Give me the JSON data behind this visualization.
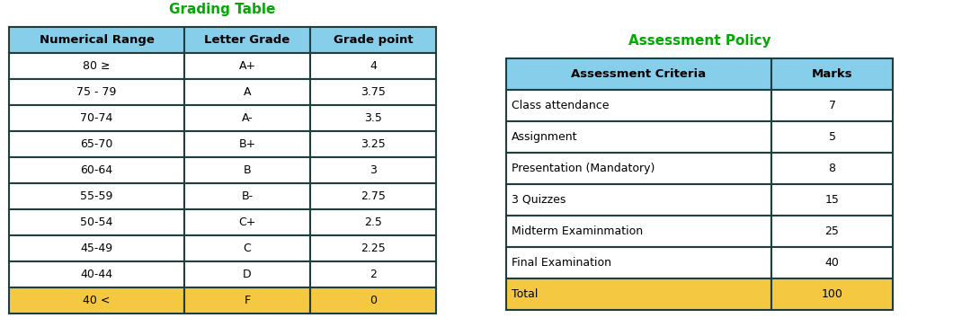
{
  "grading_title": "Grading Table",
  "assessment_title": "Assessment Policy",
  "title_color": "#00AA00",
  "header_bg": "#87CEEB",
  "normal_bg": "#FFFFFF",
  "highlight_bg": "#F5C842",
  "border_color": "#1F3F3F",
  "grading_headers": [
    "Numerical Range",
    "Letter Grade",
    "Grade point"
  ],
  "grading_rows": [
    [
      "80 ≥",
      "A+",
      "4"
    ],
    [
      "75 - 79",
      "A",
      "3.75"
    ],
    [
      "70-74",
      "A-",
      "3.5"
    ],
    [
      "65-70",
      "B+",
      "3.25"
    ],
    [
      "60-64",
      "B",
      "3"
    ],
    [
      "55-59",
      "B-",
      "2.75"
    ],
    [
      "50-54",
      "C+",
      "2.5"
    ],
    [
      "45-49",
      "C",
      "2.25"
    ],
    [
      "40-44",
      "D",
      "2"
    ],
    [
      "40 <",
      "F",
      "0"
    ]
  ],
  "grading_highlight_row": 9,
  "assessment_headers": [
    "Assessment Criteria",
    "Marks"
  ],
  "assessment_rows": [
    [
      "Class attendance",
      "7"
    ],
    [
      "Assignment",
      "5"
    ],
    [
      "Presentation (Mandatory)",
      "8"
    ],
    [
      "3 Quizzes",
      "15"
    ],
    [
      "Midterm Examinmation",
      "25"
    ],
    [
      "Final Examination",
      "40"
    ],
    [
      "Total",
      "100"
    ]
  ],
  "assessment_highlight_row": 6,
  "font_size": 9,
  "header_font_size": 9.5,
  "title_fontsize": 11,
  "fig_width": 10.6,
  "fig_height": 3.54,
  "dpi": 100
}
